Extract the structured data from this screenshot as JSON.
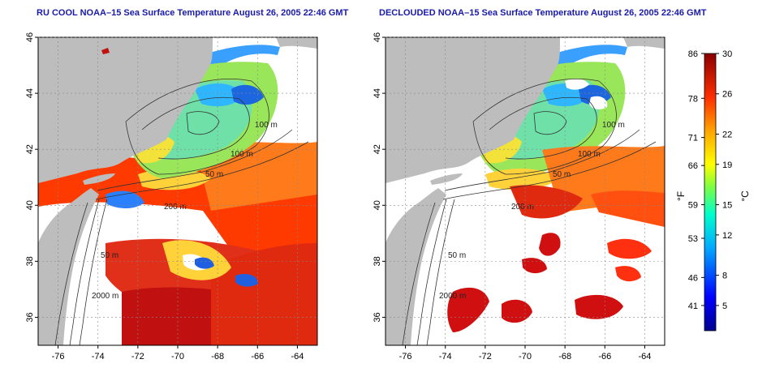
{
  "titles": {
    "left": "RU COOL NOAA–15 Sea Surface Temperature August 26, 2005 22:46 GMT",
    "right": "DECLOUDED NOAA–15 Sea Surface Temperature August 26, 2005 22:46 GMT"
  },
  "axes": {
    "lon_ticks": [
      "-76",
      "-74",
      "-72",
      "-70",
      "-68",
      "-66",
      "-64"
    ],
    "lat_ticks": [
      "36",
      "38",
      "40",
      "42",
      "44",
      "46"
    ]
  },
  "contour_labels": [
    "100 m",
    "100 m",
    "50 m",
    "200 m",
    "50 m",
    "2000 m"
  ],
  "colorbar": {
    "fahrenheit_unit": "°F",
    "celsius_unit": "°C",
    "fahrenheit_ticks": [
      "86",
      "78",
      "71",
      "66",
      "59",
      "53",
      "46",
      "41"
    ],
    "celsius_ticks": [
      "30",
      "26",
      "22",
      "19",
      "15",
      "12",
      "8",
      "5"
    ]
  },
  "colors": {
    "land": "#bdbdbd",
    "cloud": "#ffffff",
    "title": "#1a1aa8"
  }
}
